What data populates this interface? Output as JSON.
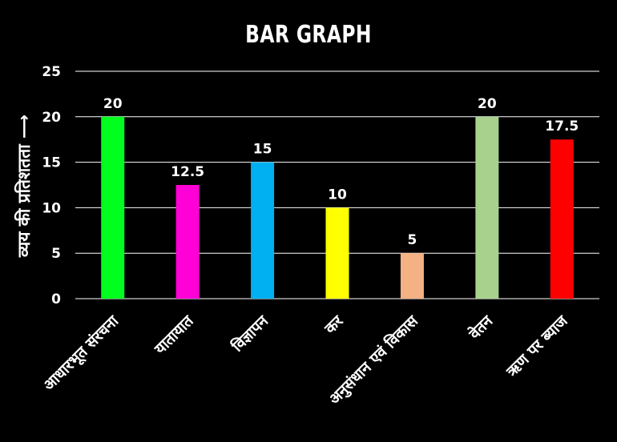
{
  "chart_data": {
    "type": "bar",
    "title": "BAR GRAPH",
    "xlabel": "",
    "ylabel": "व्यय की प्रतिशतता ⟶",
    "categories": [
      "आधारभूत संरचना",
      "यातायात",
      "विज्ञापन",
      "कर",
      "अनुसंधान एवं विकास",
      "वेतन",
      "ऋण पर ब्याज"
    ],
    "values": [
      20,
      12.5,
      15,
      10,
      5,
      20,
      17.5
    ],
    "value_labels": [
      "20",
      "12.5",
      "15",
      "10",
      "5",
      "20",
      "17.5"
    ],
    "bar_colors": [
      "#00ff1e",
      "#ff00d6",
      "#00b0f0",
      "#ffff00",
      "#f4b183",
      "#a9d18e",
      "#ff0000"
    ],
    "ylim": [
      0,
      25
    ],
    "yticks": [
      0,
      5,
      10,
      15,
      20,
      25
    ],
    "grid": true,
    "background": "#000000",
    "gridline_color": "#ffffff"
  }
}
